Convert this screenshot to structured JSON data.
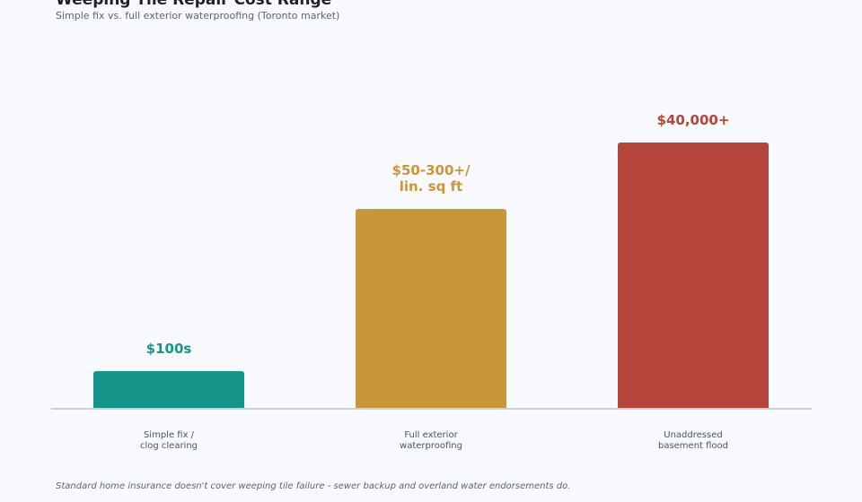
{
  "title": "Weeping Tile Repair Cost Range",
  "subtitle": "Simple fix vs. full exterior waterproofing (Toronto market)",
  "footnote": "Standard home insurance doesn't cover weeping tile failure - sewer backup and overland water endorsements do.",
  "chart_data": {
    "type": "bar",
    "title": "Weeping Tile Repair Cost Range",
    "subtitle": "Simple fix vs. full exterior waterproofing (Toronto market)",
    "categories": [
      [
        "Simple fix /",
        "clog clearing"
      ],
      [
        "Full exterior",
        "waterproofing"
      ],
      [
        "Unaddressed",
        "basement flood"
      ]
    ],
    "value_labels": [
      [
        "$100s"
      ],
      [
        "$50-300+/",
        "lin. sq ft"
      ],
      [
        "$40,000+"
      ]
    ],
    "relative_heights": [
      0.14,
      0.75,
      1.0
    ],
    "colors": [
      "#16968a",
      "#c8973a",
      "#b5443b"
    ],
    "axis_color": "#c9d0d8",
    "grid": false,
    "xlabel": "",
    "ylabel": ""
  }
}
